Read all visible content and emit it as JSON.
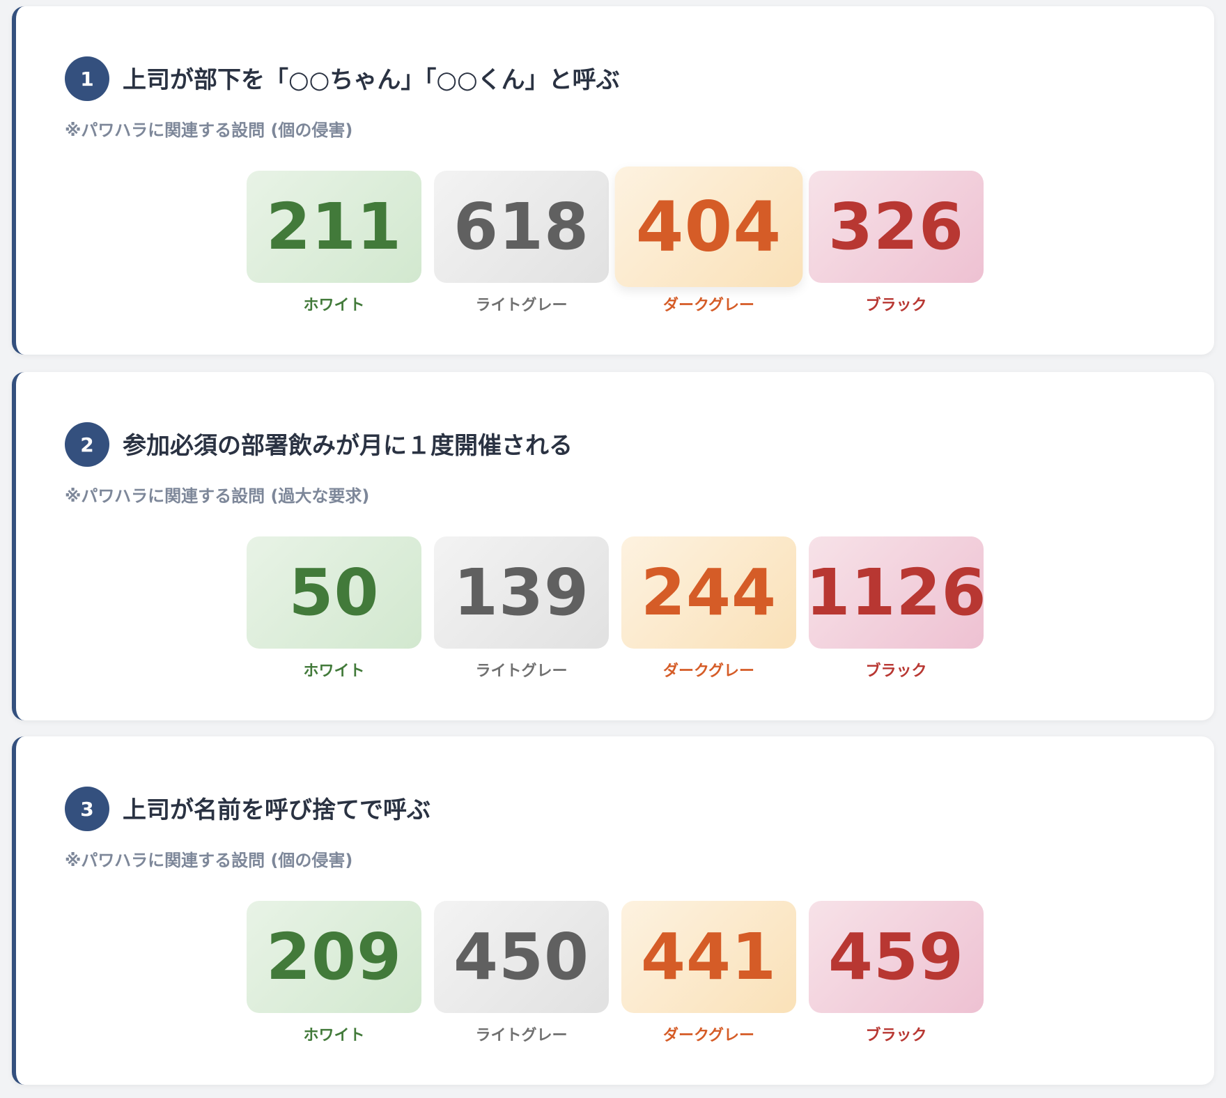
{
  "category_labels": [
    "ホワイト",
    "ライトグレー",
    "ダークグレー",
    "ブラック"
  ],
  "colors": {
    "accent": "#34507e",
    "white": "#427a3a",
    "light_gray": "#606060",
    "dark_gray": "#d55c27",
    "black": "#b83732"
  },
  "questions": [
    {
      "number": "1",
      "title": "上司が部下を「○○ちゃん」「○○くん」と呼ぶ",
      "note": "※パワハラに関連する設問 (個の侵害)",
      "counts": [
        "211",
        "618",
        "404",
        "326"
      ]
    },
    {
      "number": "2",
      "title": "参加必須の部署飲みが月に１度開催される",
      "note": "※パワハラに関連する設問 (過大な要求)",
      "counts": [
        "50",
        "139",
        "244",
        "1126"
      ]
    },
    {
      "number": "3",
      "title": "上司が名前を呼び捨てで呼ぶ",
      "note": "※パワハラに関連する設問 (個の侵害)",
      "counts": [
        "209",
        "450",
        "441",
        "459"
      ]
    }
  ]
}
